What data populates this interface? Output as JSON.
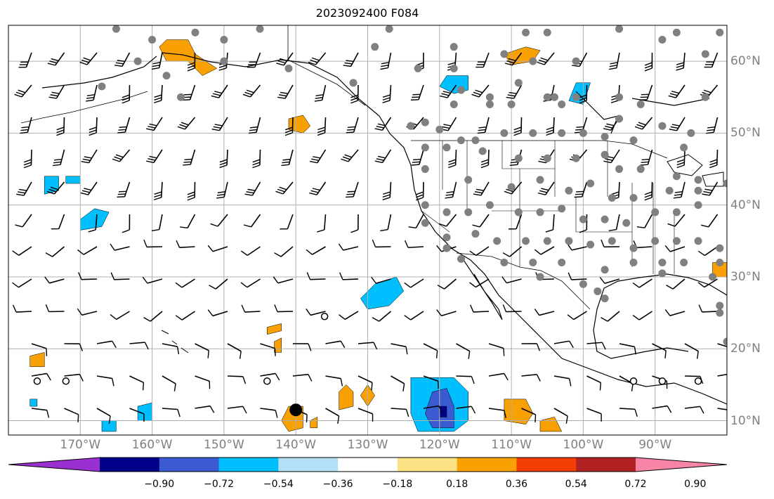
{
  "title": "2023092400 F084",
  "longitude_labels": [
    "170°W",
    "160°W",
    "150°W",
    "140°W",
    "130°W",
    "120°W",
    "110°W",
    "100°W",
    "90°W"
  ],
  "latitude_labels": [
    "60°N",
    "50°N",
    "40°N",
    "30°N",
    "20°N",
    "10°N"
  ],
  "colorbar": {
    "tick_labels": [
      "−0.90",
      "−0.72",
      "−0.54",
      "−0.36",
      "−0.18",
      "0.18",
      "0.36",
      "0.54",
      "0.72",
      "0.90"
    ],
    "colors": [
      "#9b30d0",
      "#00008b",
      "#3a5bd1",
      "#00bfff",
      "#b3e0f7",
      "#ffffff",
      "#fbe385",
      "#f9a003",
      "#f53d06",
      "#b22222",
      "#f785a6"
    ]
  },
  "colors": {
    "grid": "#b0b0b0",
    "coast": "#000000",
    "station": "#808080",
    "label": "#808080"
  },
  "map_data": {
    "extent": {
      "lon_min": -180,
      "lon_max": -80,
      "lat_min": 8,
      "lat_max": 65
    },
    "stations": [
      [
        -165,
        64.5
      ],
      [
        -160,
        63
      ],
      [
        -154,
        64
      ],
      [
        -150,
        63
      ],
      [
        -145,
        64.5
      ],
      [
        -127,
        64.5
      ],
      [
        -108,
        64
      ],
      [
        -105,
        64
      ],
      [
        -95,
        64.5
      ],
      [
        -87,
        64
      ],
      [
        -81,
        64
      ],
      [
        -162,
        60
      ],
      [
        -158,
        58
      ],
      [
        -150,
        60
      ],
      [
        -141,
        59
      ],
      [
        -129,
        62
      ],
      [
        -118,
        62
      ],
      [
        -111,
        61
      ],
      [
        -107,
        60
      ],
      [
        -101,
        60
      ],
      [
        -89,
        63
      ],
      [
        -83,
        61
      ],
      [
        -167,
        56.5
      ],
      [
        -156,
        55
      ],
      [
        -132,
        57
      ],
      [
        -123,
        59
      ],
      [
        -118,
        59
      ],
      [
        -109,
        57
      ],
      [
        -104,
        55
      ],
      [
        -103,
        54
      ],
      [
        -95,
        55
      ],
      [
        -92,
        54
      ],
      [
        -83,
        55
      ],
      [
        -117,
        56
      ],
      [
        -118,
        54
      ],
      [
        -113,
        55
      ],
      [
        -113,
        54
      ],
      [
        -110,
        54
      ],
      [
        -105,
        55
      ],
      [
        -101,
        55
      ],
      [
        -95,
        52
      ],
      [
        -89,
        51
      ],
      [
        -85,
        50
      ],
      [
        -124,
        51
      ],
      [
        -122,
        51.5
      ],
      [
        -120,
        50.5
      ],
      [
        -117,
        49
      ],
      [
        -115,
        49
      ],
      [
        -111,
        50
      ],
      [
        -107,
        50
      ],
      [
        -103,
        50
      ],
      [
        -100,
        50
      ],
      [
        -97,
        49.5
      ],
      [
        -93,
        49
      ],
      [
        -86,
        48
      ],
      [
        -122,
        48
      ],
      [
        -119,
        48
      ],
      [
        -114,
        47.5
      ],
      [
        -109,
        46.5
      ],
      [
        -105,
        46.5
      ],
      [
        -101,
        46.5
      ],
      [
        -97,
        47
      ],
      [
        -95,
        45
      ],
      [
        -92,
        45
      ],
      [
        -87,
        44
      ],
      [
        -84,
        43.5
      ],
      [
        -122,
        45
      ],
      [
        -116,
        43.5
      ],
      [
        -110,
        42.5
      ],
      [
        -106,
        43.5
      ],
      [
        -102,
        42
      ],
      [
        -99,
        43
      ],
      [
        -96,
        41
      ],
      [
        -93,
        41
      ],
      [
        -88,
        42
      ],
      [
        -84,
        42
      ],
      [
        -80,
        43
      ],
      [
        -122,
        40
      ],
      [
        -119,
        39
      ],
      [
        -116,
        39
      ],
      [
        -113,
        40
      ],
      [
        -109,
        39
      ],
      [
        -106,
        39
      ],
      [
        -103,
        39.5
      ],
      [
        -100,
        38
      ],
      [
        -97,
        38
      ],
      [
        -94,
        37.5
      ],
      [
        -90,
        39
      ],
      [
        -87,
        39
      ],
      [
        -84,
        40
      ],
      [
        -122,
        37.5
      ],
      [
        -119,
        35.5
      ],
      [
        -115,
        36
      ],
      [
        -112,
        35
      ],
      [
        -108,
        35
      ],
      [
        -105,
        35
      ],
      [
        -102,
        35
      ],
      [
        -99,
        34.5
      ],
      [
        -96,
        35
      ],
      [
        -93,
        34
      ],
      [
        -90,
        35
      ],
      [
        -87,
        35
      ],
      [
        -84,
        35
      ],
      [
        -81,
        34
      ],
      [
        -119,
        34
      ],
      [
        -117,
        32.5
      ],
      [
        -111,
        32
      ],
      [
        -107,
        32
      ],
      [
        -103,
        32
      ],
      [
        -97,
        31
      ],
      [
        -93,
        32
      ],
      [
        -89,
        32
      ],
      [
        -86,
        32
      ],
      [
        -82,
        30
      ],
      [
        -81,
        32
      ],
      [
        -106,
        30
      ],
      [
        -100,
        29
      ],
      [
        -98,
        28
      ],
      [
        -97,
        27
      ],
      [
        -89,
        30.5
      ],
      [
        -81,
        26
      ],
      [
        -81,
        25
      ],
      [
        -80,
        21
      ]
    ],
    "open_circles": [
      [
        -176,
        15.5
      ],
      [
        -172,
        15.5
      ],
      [
        -136,
        24.5
      ],
      [
        -144,
        15.5
      ],
      [
        -93,
        15.5
      ],
      [
        -89,
        15.5
      ],
      [
        -84,
        15.5
      ]
    ],
    "black_dot": [
      -140,
      11.5
    ],
    "filled_regions": [
      {
        "color": "#f9a003",
        "pts": [
          [
            -159,
            62
          ],
          [
            -158,
            63
          ],
          [
            -155,
            63
          ],
          [
            -154,
            61
          ],
          [
            -151,
            59
          ],
          [
            -153,
            58
          ],
          [
            -155,
            60
          ],
          [
            -158,
            60
          ]
        ]
      },
      {
        "color": "#f9a003",
        "pts": [
          [
            -141,
            52
          ],
          [
            -139,
            52.5
          ],
          [
            -138,
            51
          ],
          [
            -139,
            50
          ],
          [
            -141,
            50.5
          ]
        ]
      },
      {
        "color": "#f9a003",
        "pts": [
          [
            -111,
            61
          ],
          [
            -108,
            62
          ],
          [
            -106,
            61.5
          ],
          [
            -107,
            60
          ],
          [
            -110,
            59.5
          ]
        ]
      },
      {
        "color": "#00bfff",
        "pts": [
          [
            -119,
            58
          ],
          [
            -116,
            58
          ],
          [
            -116,
            56
          ],
          [
            -118,
            55.5
          ],
          [
            -120,
            56.5
          ]
        ]
      },
      {
        "color": "#00bfff",
        "pts": [
          [
            -101,
            57
          ],
          [
            -99,
            57
          ],
          [
            -100,
            54
          ],
          [
            -102,
            54.5
          ]
        ]
      },
      {
        "color": "#00bfff",
        "pts": [
          [
            -175,
            44
          ],
          [
            -173,
            44
          ],
          [
            -173,
            42
          ],
          [
            -175,
            41.5
          ]
        ]
      },
      {
        "color": "#00bfff",
        "pts": [
          [
            -172,
            44
          ],
          [
            -170,
            44
          ],
          [
            -170,
            43
          ],
          [
            -172,
            43
          ]
        ]
      },
      {
        "color": "#00bfff",
        "pts": [
          [
            -170,
            38
          ],
          [
            -168,
            39.5
          ],
          [
            -166,
            39
          ],
          [
            -167,
            37
          ],
          [
            -170,
            36.5
          ]
        ]
      },
      {
        "color": "#00bfff",
        "pts": [
          [
            -129,
            29
          ],
          [
            -126,
            30
          ],
          [
            -125,
            28
          ],
          [
            -127,
            26
          ],
          [
            -130,
            25.5
          ],
          [
            -131,
            27
          ]
        ]
      },
      {
        "color": "#f9a003",
        "pts": [
          [
            -144,
            23
          ],
          [
            -142,
            23.5
          ],
          [
            -142,
            22.5
          ],
          [
            -144,
            22
          ]
        ]
      },
      {
        "color": "#f9a003",
        "pts": [
          [
            -143,
            21
          ],
          [
            -142,
            21.5
          ],
          [
            -142,
            19.5
          ],
          [
            -143,
            19.5
          ]
        ]
      },
      {
        "color": "#f9a003",
        "pts": [
          [
            -177,
            19
          ],
          [
            -175,
            19.5
          ],
          [
            -175,
            17.5
          ],
          [
            -177,
            17.5
          ]
        ]
      },
      {
        "color": "#f9a003",
        "pts": [
          [
            -134,
            14
          ],
          [
            -133,
            15
          ],
          [
            -132,
            14
          ],
          [
            -132,
            12
          ],
          [
            -134,
            11.5
          ]
        ]
      },
      {
        "color": "#f9a003",
        "pts": [
          [
            -131,
            13.5
          ],
          [
            -130,
            15
          ],
          [
            -129,
            13.5
          ],
          [
            -130,
            12
          ]
        ]
      },
      {
        "color": "#f9a003",
        "pts": [
          [
            -141,
            12
          ],
          [
            -139,
            12
          ],
          [
            -139,
            9
          ],
          [
            -141,
            8.5
          ],
          [
            -142,
            10
          ]
        ]
      },
      {
        "color": "#f9a003",
        "pts": [
          [
            -138,
            10
          ],
          [
            -137,
            10.5
          ],
          [
            -137,
            9
          ],
          [
            -138,
            9
          ]
        ]
      },
      {
        "color": "#00bfff",
        "pts": [
          [
            -124,
            16
          ],
          [
            -118,
            16
          ],
          [
            -116,
            14
          ],
          [
            -116,
            10
          ],
          [
            -118,
            8.5
          ],
          [
            -123,
            8.5
          ],
          [
            -124,
            11
          ]
        ]
      },
      {
        "color": "#3a5bd1",
        "pts": [
          [
            -121,
            14
          ],
          [
            -119,
            14.5
          ],
          [
            -118,
            12
          ],
          [
            -118,
            9
          ],
          [
            -121,
            9
          ],
          [
            -122,
            11
          ]
        ]
      },
      {
        "color": "#00008b",
        "pts": [
          [
            -120,
            12
          ],
          [
            -119,
            12
          ],
          [
            -119,
            10.5
          ],
          [
            -120,
            10.5
          ]
        ]
      },
      {
        "color": "#f9a003",
        "pts": [
          [
            -111,
            13
          ],
          [
            -108,
            13
          ],
          [
            -107,
            11
          ],
          [
            -108,
            9.5
          ],
          [
            -111,
            10
          ]
        ]
      },
      {
        "color": "#f9a003",
        "pts": [
          [
            -106,
            10
          ],
          [
            -104,
            10.5
          ],
          [
            -103,
            8.5
          ],
          [
            -106,
            8.5
          ]
        ]
      },
      {
        "color": "#f9a003",
        "pts": [
          [
            -82,
            32
          ],
          [
            -80,
            32
          ],
          [
            -80,
            30
          ],
          [
            -82,
            30
          ]
        ]
      },
      {
        "color": "#00bfff",
        "pts": [
          [
            -162,
            12
          ],
          [
            -160,
            12.5
          ],
          [
            -160,
            10
          ],
          [
            -162,
            10
          ]
        ]
      },
      {
        "color": "#00bfff",
        "pts": [
          [
            -167,
            10
          ],
          [
            -165,
            10
          ],
          [
            -165,
            8.5
          ],
          [
            -167,
            8.5
          ]
        ]
      },
      {
        "color": "#00bfff",
        "pts": [
          [
            -177,
            13
          ],
          [
            -176,
            13
          ],
          [
            -176,
            12
          ],
          [
            -177,
            12
          ]
        ]
      }
    ]
  }
}
